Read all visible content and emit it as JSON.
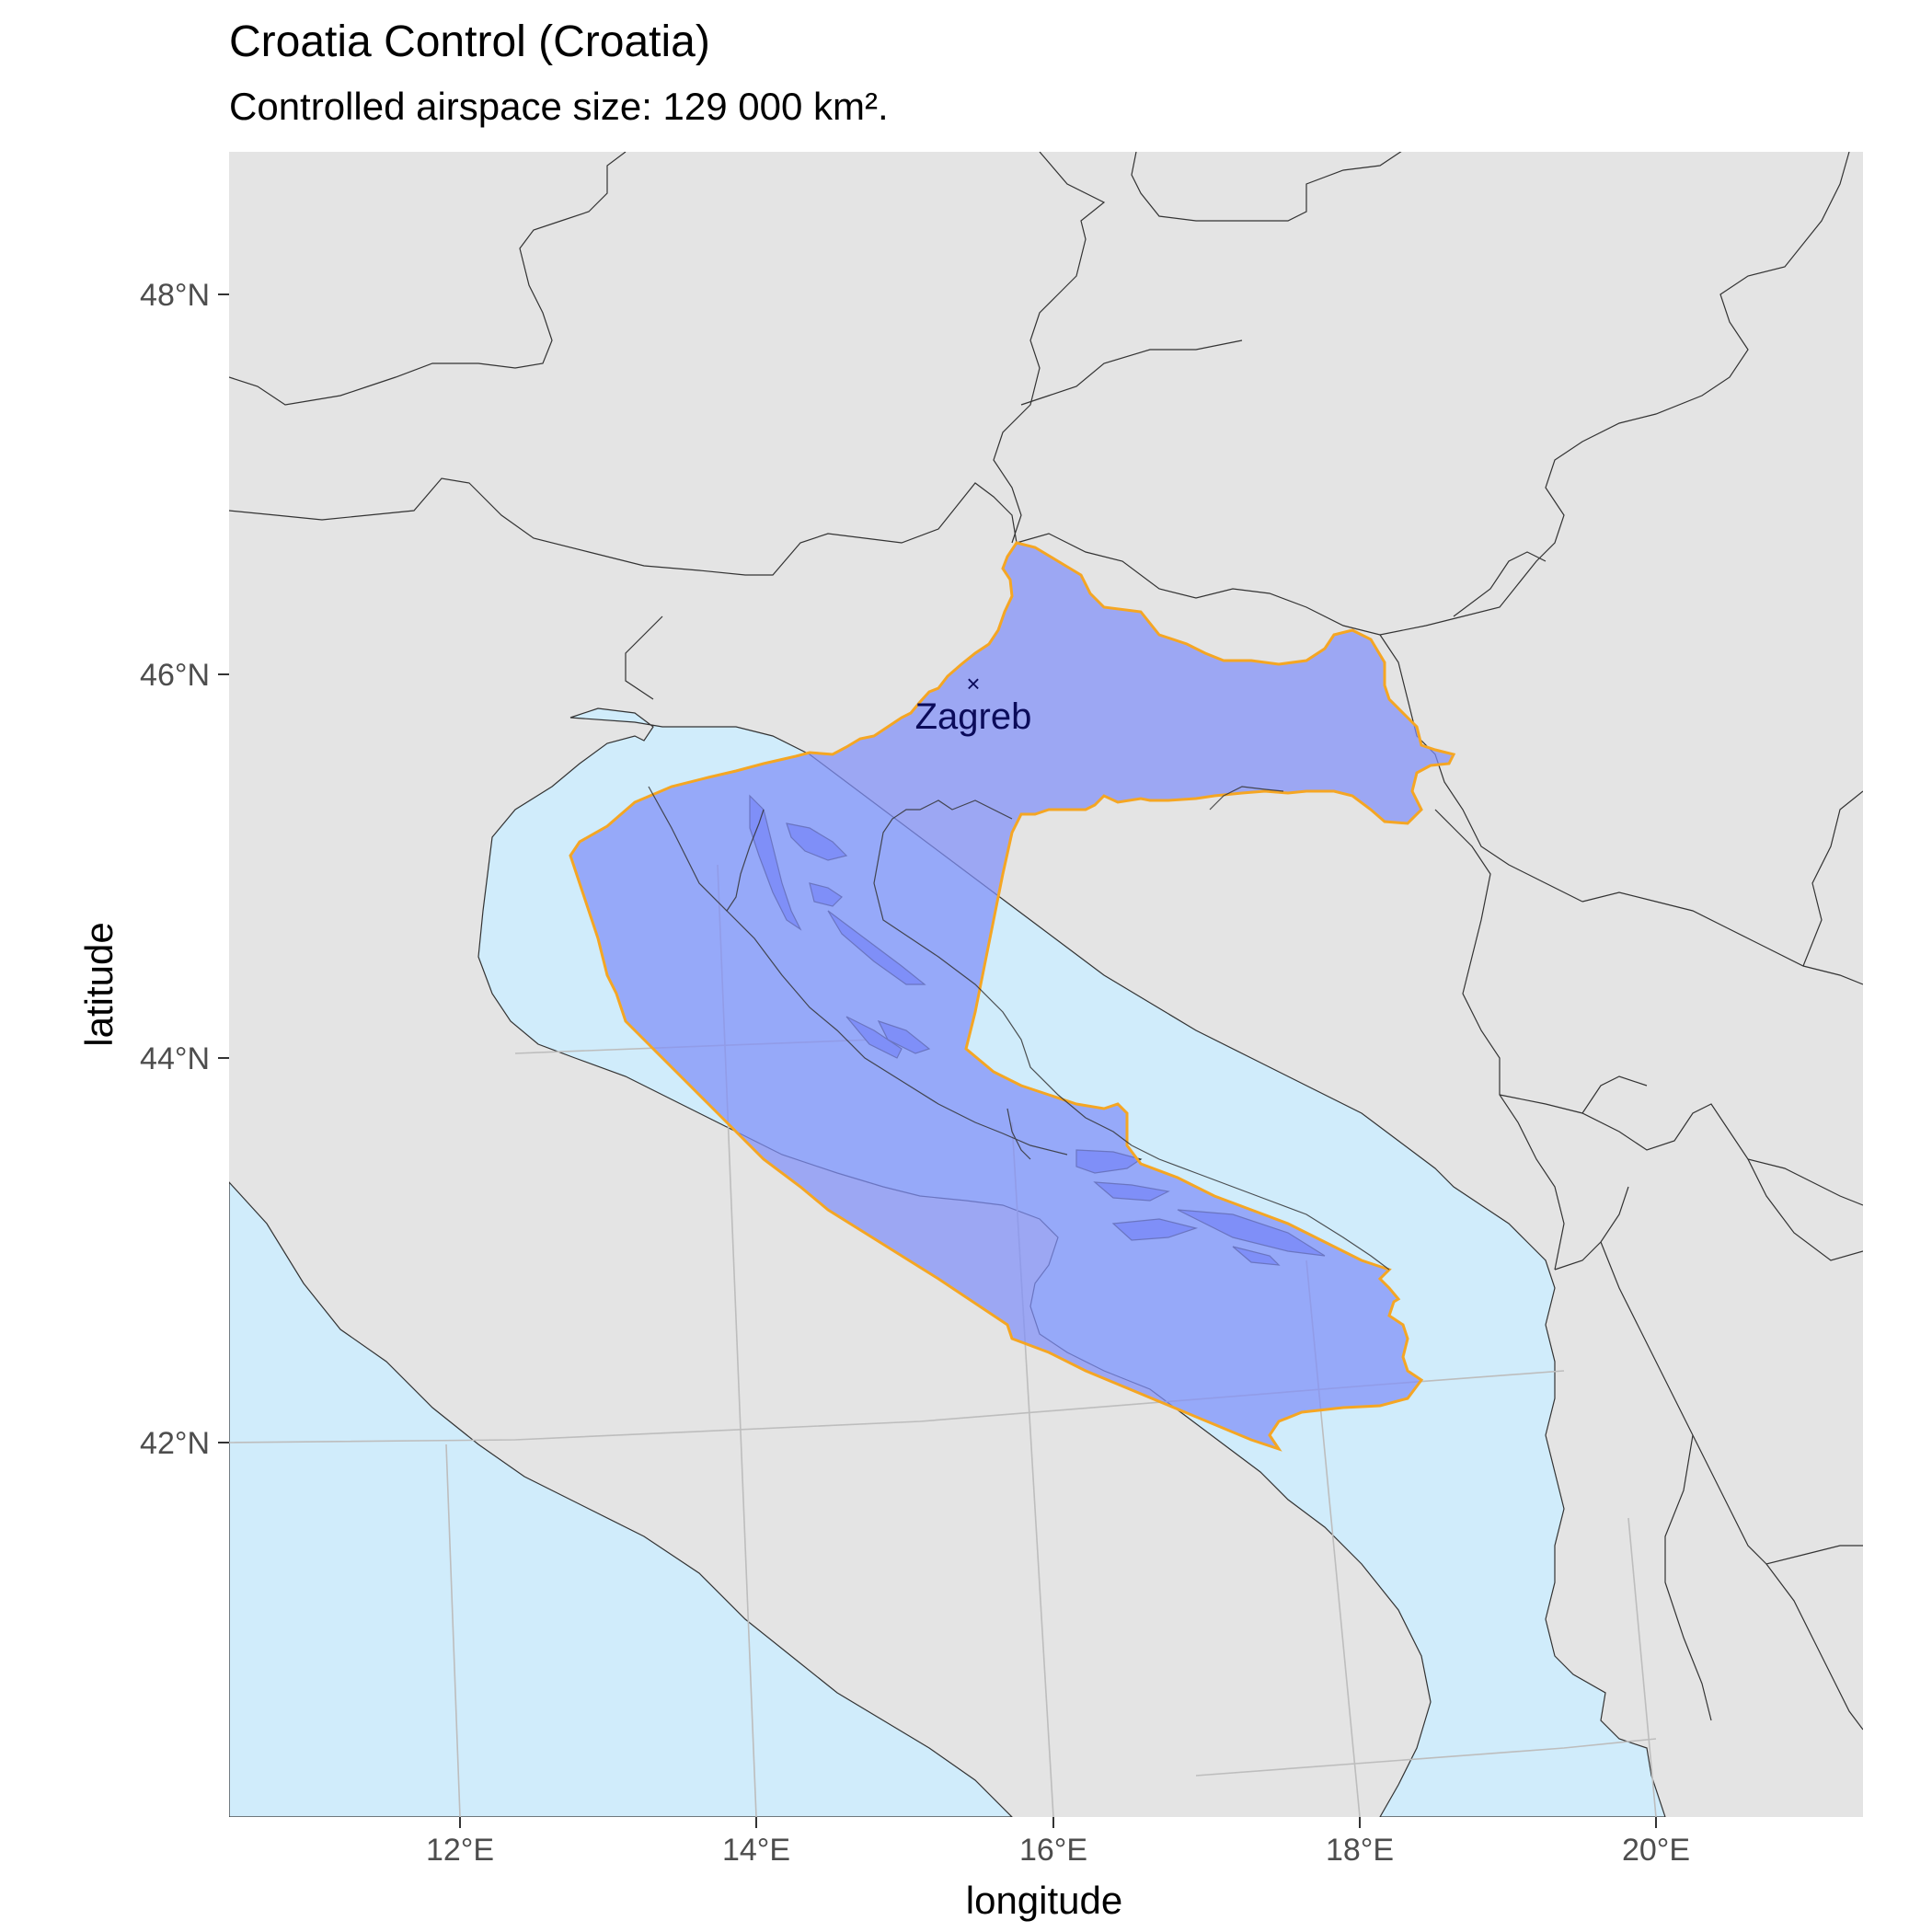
{
  "title": "Croatia Control (Croatia)",
  "subtitle": "Controlled airspace size: 129 000 km².",
  "axes": {
    "xlabel": "longitude",
    "ylabel": "latitude",
    "x_ticks": [
      "12°E",
      "14°E",
      "16°E",
      "18°E",
      "20°E"
    ],
    "y_ticks": [
      "48°N",
      "46°N",
      "44°N",
      "42°N"
    ]
  },
  "map": {
    "region": "Adriatic / Balkans",
    "xlim": [
      10.5,
      21.4
    ],
    "ylim": [
      40.2,
      48.7
    ],
    "city": {
      "name": "Zagreb",
      "lon": 15.98,
      "lat": 45.81,
      "marker": "×"
    },
    "airspace_name": "Croatia Control",
    "colors": {
      "land": "#e4e4e4",
      "sea": "#d0ecfb",
      "airspace_fill": "#7f8ff8",
      "airspace_border": "#f5a623",
      "border_lines": "#333333",
      "graticule": "#bdbdbd"
    }
  }
}
